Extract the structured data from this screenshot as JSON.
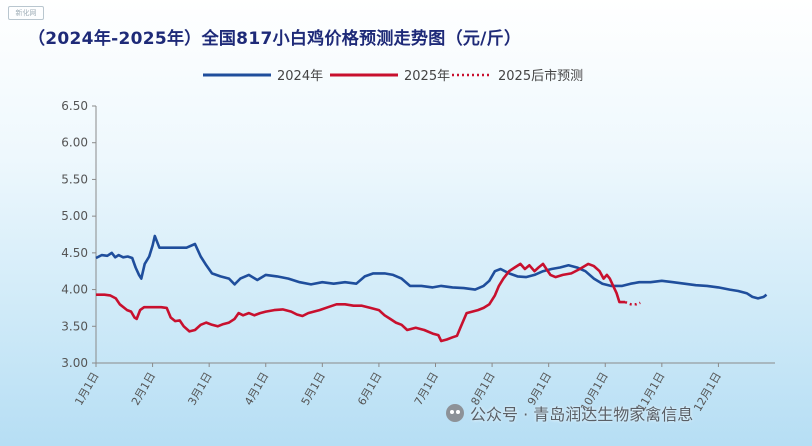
{
  "corner_tag": "新化网",
  "watermark": {
    "text": "公众号 · 青岛润达生物家禽信息",
    "icon": "wechat-icon"
  },
  "colors": {
    "y2024": "#1f4e9c",
    "y2025": "#c8102e",
    "forecast": "#c8102e",
    "title": "#1e2a78",
    "axis": "#808080"
  },
  "chart_data": {
    "type": "line",
    "title": "（2024年-2025年）全国817小白鸡价格预测走势图（元/斤）",
    "legend": {
      "placement": "top",
      "entries": [
        "2024年",
        "2025年",
        "2025后市预测"
      ]
    },
    "x_ticks": [
      "1月1日",
      "2月1日",
      "3月1日",
      "4月1日",
      "5月1日",
      "6月1日",
      "7月1日",
      "8月1日",
      "9月1日",
      "10月1日",
      "11月1日",
      "12月1日"
    ],
    "x_range": [
      0,
      12
    ],
    "ylim": [
      3.0,
      6.5
    ],
    "y_ticks": [
      "3.00",
      "3.50",
      "4.00",
      "4.50",
      "5.00",
      "5.50",
      "6.00",
      "6.50"
    ],
    "grid": false,
    "series": [
      {
        "name": "2024年",
        "style": "solid",
        "points": [
          [
            0.0,
            4.43
          ],
          [
            0.1,
            4.47
          ],
          [
            0.2,
            4.46
          ],
          [
            0.28,
            4.5
          ],
          [
            0.34,
            4.44
          ],
          [
            0.4,
            4.47
          ],
          [
            0.48,
            4.44
          ],
          [
            0.56,
            4.45
          ],
          [
            0.64,
            4.43
          ],
          [
            0.7,
            4.3
          ],
          [
            0.76,
            4.2
          ],
          [
            0.8,
            4.15
          ],
          [
            0.86,
            4.35
          ],
          [
            0.94,
            4.45
          ],
          [
            1.0,
            4.6
          ],
          [
            1.04,
            4.73
          ],
          [
            1.08,
            4.65
          ],
          [
            1.12,
            4.57
          ],
          [
            1.4,
            4.57
          ],
          [
            1.6,
            4.57
          ],
          [
            1.75,
            4.62
          ],
          [
            1.85,
            4.45
          ],
          [
            1.95,
            4.33
          ],
          [
            2.05,
            4.22
          ],
          [
            2.2,
            4.18
          ],
          [
            2.35,
            4.15
          ],
          [
            2.45,
            4.07
          ],
          [
            2.55,
            4.15
          ],
          [
            2.7,
            4.2
          ],
          [
            2.85,
            4.13
          ],
          [
            3.0,
            4.2
          ],
          [
            3.2,
            4.18
          ],
          [
            3.4,
            4.15
          ],
          [
            3.6,
            4.1
          ],
          [
            3.8,
            4.07
          ],
          [
            4.0,
            4.1
          ],
          [
            4.2,
            4.08
          ],
          [
            4.4,
            4.1
          ],
          [
            4.6,
            4.08
          ],
          [
            4.75,
            4.18
          ],
          [
            4.9,
            4.22
          ],
          [
            5.1,
            4.22
          ],
          [
            5.25,
            4.2
          ],
          [
            5.4,
            4.15
          ],
          [
            5.55,
            4.05
          ],
          [
            5.75,
            4.05
          ],
          [
            5.95,
            4.03
          ],
          [
            6.1,
            4.05
          ],
          [
            6.3,
            4.03
          ],
          [
            6.5,
            4.02
          ],
          [
            6.7,
            4.0
          ],
          [
            6.85,
            4.05
          ],
          [
            6.95,
            4.12
          ],
          [
            7.05,
            4.25
          ],
          [
            7.15,
            4.28
          ],
          [
            7.3,
            4.22
          ],
          [
            7.45,
            4.18
          ],
          [
            7.6,
            4.17
          ],
          [
            7.75,
            4.2
          ],
          [
            7.9,
            4.25
          ],
          [
            8.05,
            4.28
          ],
          [
            8.2,
            4.3
          ],
          [
            8.35,
            4.33
          ],
          [
            8.5,
            4.3
          ],
          [
            8.65,
            4.25
          ],
          [
            8.8,
            4.15
          ],
          [
            8.95,
            4.08
          ],
          [
            9.1,
            4.05
          ],
          [
            9.3,
            4.05
          ],
          [
            9.45,
            4.08
          ],
          [
            9.6,
            4.1
          ],
          [
            9.8,
            4.1
          ],
          [
            10.0,
            4.12
          ],
          [
            10.2,
            4.1
          ],
          [
            10.4,
            4.08
          ],
          [
            10.6,
            4.06
          ],
          [
            10.8,
            4.05
          ],
          [
            11.0,
            4.03
          ],
          [
            11.2,
            4.0
          ],
          [
            11.35,
            3.98
          ],
          [
            11.5,
            3.95
          ],
          [
            11.6,
            3.9
          ],
          [
            11.7,
            3.88
          ],
          [
            11.8,
            3.9
          ],
          [
            11.85,
            3.93
          ]
        ]
      },
      {
        "name": "2025年",
        "style": "solid",
        "points": [
          [
            0.0,
            3.93
          ],
          [
            0.15,
            3.93
          ],
          [
            0.25,
            3.92
          ],
          [
            0.35,
            3.88
          ],
          [
            0.42,
            3.8
          ],
          [
            0.5,
            3.75
          ],
          [
            0.55,
            3.72
          ],
          [
            0.62,
            3.7
          ],
          [
            0.68,
            3.62
          ],
          [
            0.72,
            3.6
          ],
          [
            0.78,
            3.72
          ],
          [
            0.85,
            3.76
          ],
          [
            1.0,
            3.76
          ],
          [
            1.15,
            3.76
          ],
          [
            1.25,
            3.75
          ],
          [
            1.32,
            3.62
          ],
          [
            1.4,
            3.57
          ],
          [
            1.48,
            3.58
          ],
          [
            1.55,
            3.5
          ],
          [
            1.65,
            3.43
          ],
          [
            1.75,
            3.45
          ],
          [
            1.85,
            3.52
          ],
          [
            1.95,
            3.55
          ],
          [
            2.05,
            3.52
          ],
          [
            2.15,
            3.5
          ],
          [
            2.25,
            3.53
          ],
          [
            2.35,
            3.55
          ],
          [
            2.45,
            3.6
          ],
          [
            2.52,
            3.68
          ],
          [
            2.6,
            3.65
          ],
          [
            2.7,
            3.68
          ],
          [
            2.8,
            3.65
          ],
          [
            2.9,
            3.68
          ],
          [
            3.0,
            3.7
          ],
          [
            3.15,
            3.72
          ],
          [
            3.3,
            3.73
          ],
          [
            3.45,
            3.7
          ],
          [
            3.55,
            3.66
          ],
          [
            3.65,
            3.64
          ],
          [
            3.75,
            3.68
          ],
          [
            3.85,
            3.7
          ],
          [
            3.95,
            3.72
          ],
          [
            4.1,
            3.76
          ],
          [
            4.25,
            3.8
          ],
          [
            4.4,
            3.8
          ],
          [
            4.55,
            3.78
          ],
          [
            4.7,
            3.78
          ],
          [
            4.85,
            3.75
          ],
          [
            5.0,
            3.72
          ],
          [
            5.1,
            3.65
          ],
          [
            5.2,
            3.6
          ],
          [
            5.3,
            3.55
          ],
          [
            5.4,
            3.52
          ],
          [
            5.5,
            3.45
          ],
          [
            5.65,
            3.48
          ],
          [
            5.8,
            3.45
          ],
          [
            5.95,
            3.4
          ],
          [
            6.05,
            3.38
          ],
          [
            6.1,
            3.3
          ],
          [
            6.2,
            3.32
          ],
          [
            6.3,
            3.35
          ],
          [
            6.38,
            3.37
          ],
          [
            6.45,
            3.5
          ],
          [
            6.55,
            3.68
          ],
          [
            6.65,
            3.7
          ],
          [
            6.75,
            3.72
          ],
          [
            6.85,
            3.75
          ],
          [
            6.95,
            3.8
          ],
          [
            7.05,
            3.92
          ],
          [
            7.12,
            4.05
          ],
          [
            7.2,
            4.15
          ],
          [
            7.3,
            4.25
          ],
          [
            7.4,
            4.3
          ],
          [
            7.5,
            4.35
          ],
          [
            7.58,
            4.28
          ],
          [
            7.66,
            4.33
          ],
          [
            7.75,
            4.25
          ],
          [
            7.82,
            4.3
          ],
          [
            7.9,
            4.35
          ],
          [
            7.96,
            4.28
          ],
          [
            8.03,
            4.2
          ],
          [
            8.12,
            4.17
          ],
          [
            8.25,
            4.2
          ],
          [
            8.4,
            4.22
          ],
          [
            8.55,
            4.28
          ],
          [
            8.7,
            4.35
          ],
          [
            8.8,
            4.32
          ],
          [
            8.9,
            4.25
          ],
          [
            8.97,
            4.15
          ],
          [
            9.03,
            4.2
          ],
          [
            9.08,
            4.15
          ],
          [
            9.14,
            4.05
          ],
          [
            9.2,
            3.95
          ],
          [
            9.25,
            3.83
          ],
          [
            9.35,
            3.83
          ]
        ]
      },
      {
        "name": "2025后市预测",
        "style": "dotted",
        "points": [
          [
            9.35,
            3.83
          ],
          [
            9.45,
            3.8
          ],
          [
            9.55,
            3.8
          ],
          [
            9.62,
            3.82
          ]
        ]
      }
    ]
  }
}
